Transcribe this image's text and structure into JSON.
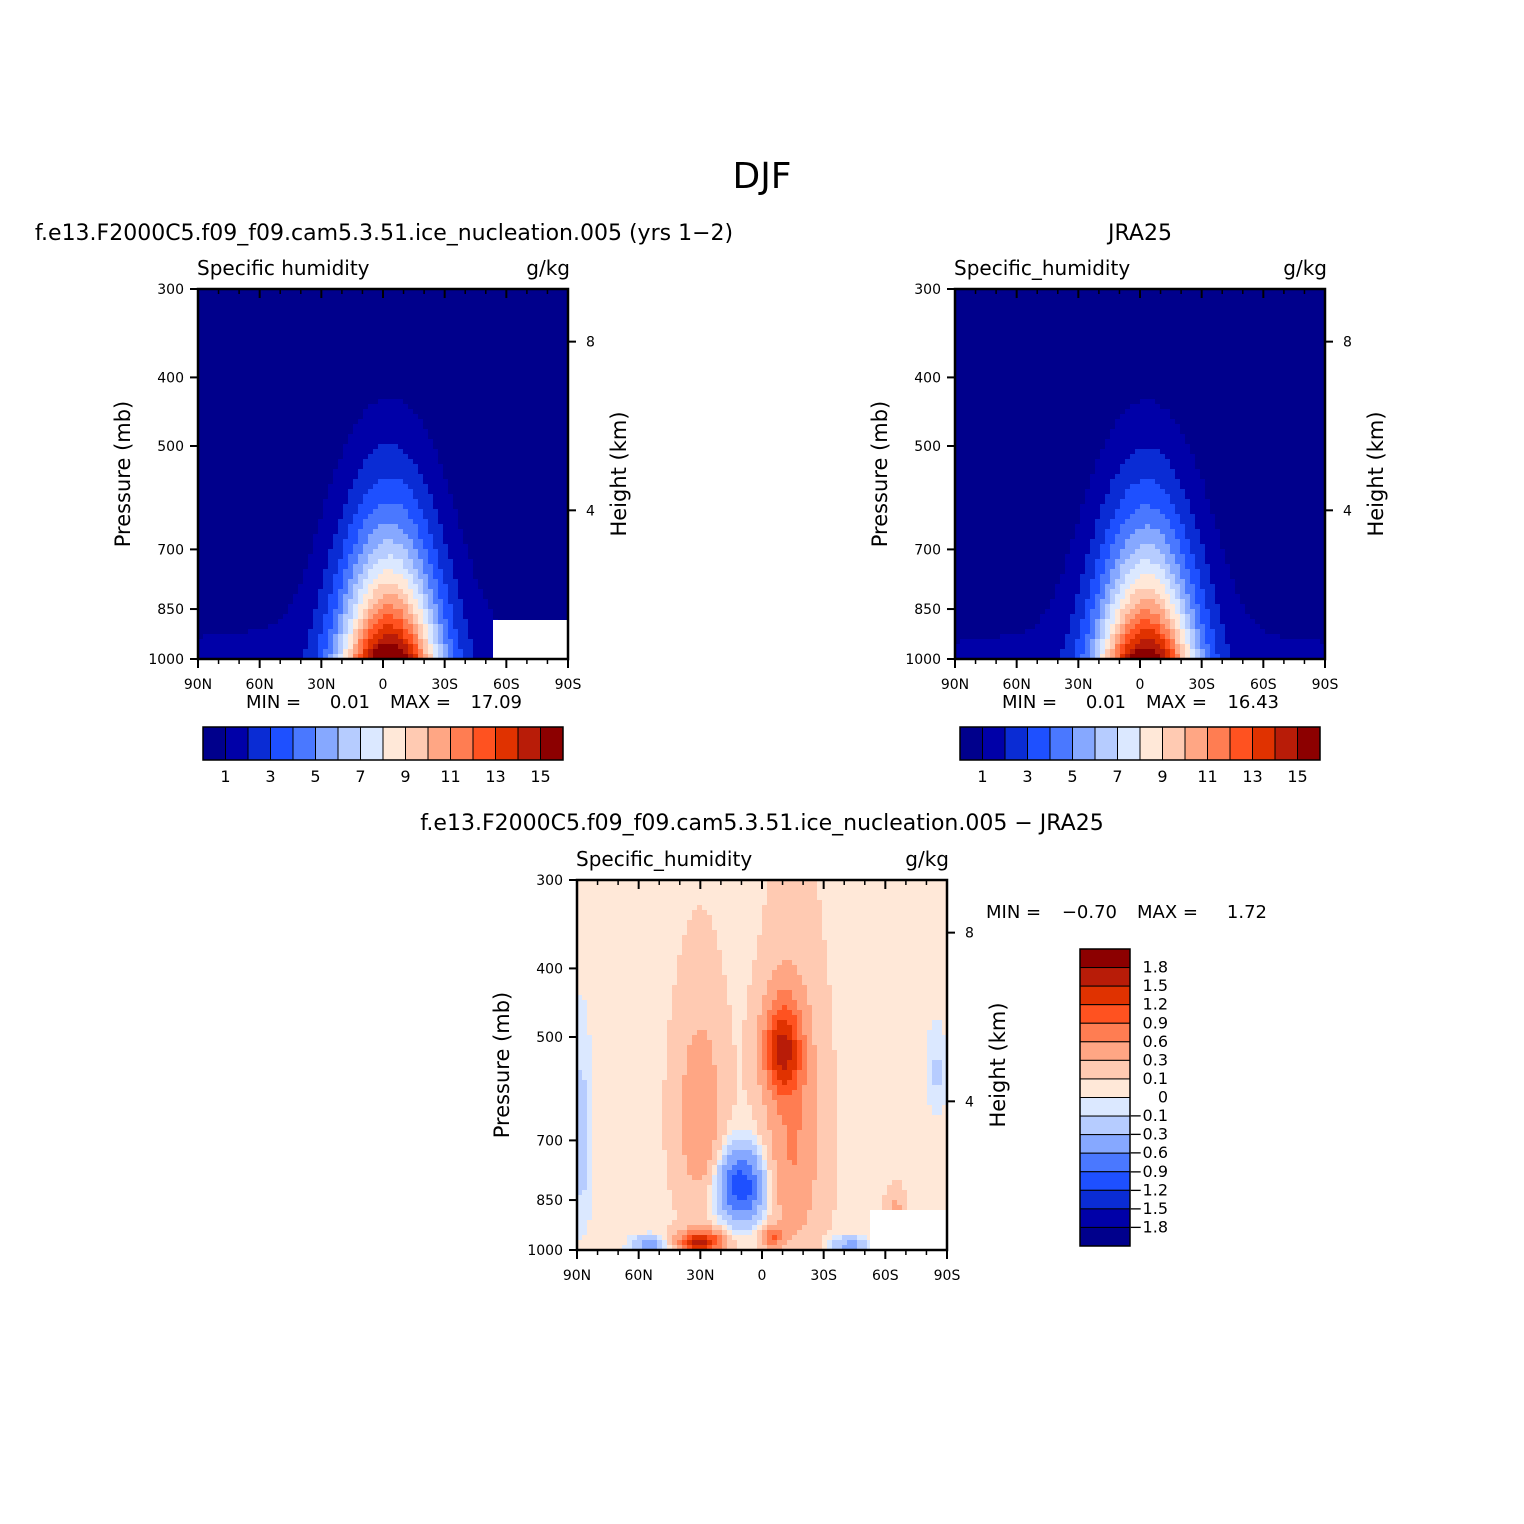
{
  "figure": {
    "title": "DJF"
  },
  "colors": {
    "abs_scale": [
      "#00008c",
      "#0000a8",
      "#0a2cd4",
      "#1e50ff",
      "#4a78ff",
      "#86a8ff",
      "#b6ccff",
      "#dbe8ff",
      "#ffe8d8",
      "#ffcab2",
      "#ffa684",
      "#ff7d52",
      "#ff5220",
      "#e03200",
      "#b81c08",
      "#8c0000"
    ],
    "diff_scale": [
      "#8c0000",
      "#b81c08",
      "#e03200",
      "#ff5220",
      "#ff7d52",
      "#ffa684",
      "#ffcab2",
      "#ffe8d8",
      "#dbe8ff",
      "#b6ccff",
      "#86a8ff",
      "#4a78ff",
      "#1e50ff",
      "#0a2cd4",
      "#0000a8",
      "#00008c"
    ],
    "missing": "#ffffff"
  },
  "chart_data": [
    {
      "type": "heatmap",
      "id": "model",
      "title": "f.e13.F2000C5.f09_f09.cam5.3.51.ice_nucleation.005 (yrs 1−2)",
      "left_label": "Specific humidity",
      "right_label": "g/kg",
      "xlabel": "",
      "ylabel": "Pressure (mb)",
      "y2label": "Height (km)",
      "x_ticks": [
        "90N",
        "60N",
        "30N",
        "0",
        "30S",
        "60S",
        "90S"
      ],
      "x_range": [
        90,
        -90
      ],
      "y_ticks": [
        300,
        400,
        500,
        700,
        850,
        1000
      ],
      "y_range": [
        300,
        1000
      ],
      "y_scale": "log",
      "y2_ticks": [
        8,
        4
      ],
      "min_label": "MIN =",
      "min": "0.01",
      "max_label": "MAX =",
      "max": "17.09",
      "peak": {
        "lat": -3,
        "value": 17.09
      },
      "colorbar": {
        "orientation": "horizontal",
        "levels": [
          0,
          1,
          2,
          3,
          4,
          5,
          6,
          7,
          8,
          9,
          10,
          11,
          12,
          13,
          14,
          15
        ],
        "labels": [
          "1",
          "3",
          "5",
          "7",
          "9",
          "11",
          "13",
          "15"
        ]
      }
    },
    {
      "type": "heatmap",
      "id": "obs",
      "title": "JRA25",
      "left_label": "Specific_humidity",
      "right_label": "g/kg",
      "xlabel": "",
      "ylabel": "Pressure (mb)",
      "y2label": "Height (km)",
      "x_ticks": [
        "90N",
        "60N",
        "30N",
        "0",
        "30S",
        "60S",
        "90S"
      ],
      "x_range": [
        90,
        -90
      ],
      "y_ticks": [
        300,
        400,
        500,
        700,
        850,
        1000
      ],
      "y_range": [
        300,
        1000
      ],
      "y_scale": "log",
      "y2_ticks": [
        8,
        4
      ],
      "min_label": "MIN =",
      "min": "0.01",
      "max_label": "MAX =",
      "max": "16.43",
      "peak": {
        "lat": -3,
        "value": 16.43
      },
      "colorbar": {
        "orientation": "horizontal",
        "levels": [
          0,
          1,
          2,
          3,
          4,
          5,
          6,
          7,
          8,
          9,
          10,
          11,
          12,
          13,
          14,
          15
        ],
        "labels": [
          "1",
          "3",
          "5",
          "7",
          "9",
          "11",
          "13",
          "15"
        ]
      }
    },
    {
      "type": "heatmap",
      "id": "diff",
      "title": "f.e13.F2000C5.f09_f09.cam5.3.51.ice_nucleation.005 − JRA25",
      "left_label": "Specific_humidity",
      "right_label": "g/kg",
      "xlabel": "",
      "ylabel": "Pressure (mb)",
      "y2label": "Height (km)",
      "x_ticks": [
        "90N",
        "60N",
        "30N",
        "0",
        "30S",
        "60S",
        "90S"
      ],
      "x_range": [
        90,
        -90
      ],
      "y_ticks": [
        300,
        400,
        500,
        700,
        850,
        1000
      ],
      "y_range": [
        300,
        1000
      ],
      "y_scale": "log",
      "y2_ticks": [
        8,
        4
      ],
      "min_label": "MIN =",
      "min": "−0.70",
      "max_label": "MAX =",
      "max": "1.72",
      "colorbar": {
        "orientation": "vertical",
        "levels": [
          1.8,
          1.5,
          1.2,
          0.9,
          0.6,
          0.3,
          0.1,
          0,
          -0.1,
          -0.3,
          -0.6,
          -0.9,
          -1.2,
          -1.5,
          -1.8
        ],
        "labels": [
          "1.8",
          "1.5",
          "1.2",
          "0.9",
          "0.6",
          "0.3",
          "0.1",
          "0",
          "−0.1",
          "−0.3",
          "−0.6",
          "−0.9",
          "−1.2",
          "−1.5",
          "−1.8"
        ]
      }
    }
  ]
}
